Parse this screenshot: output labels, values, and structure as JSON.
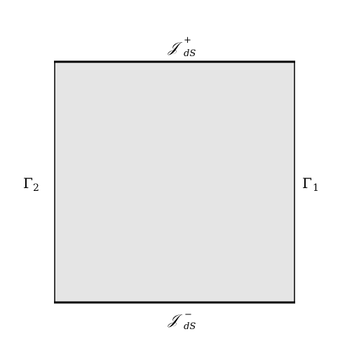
{
  "diagram": {
    "region_fill": "#e5e5e5",
    "stroke_color": "#000000",
    "top": {
      "symbol": "𝒥",
      "subscript": "dS",
      "superscript": "+"
    },
    "bottom": {
      "symbol": "𝒥",
      "subscript": "dS",
      "superscript": "−"
    },
    "right": {
      "symbol": "Γ",
      "subscript": "1"
    },
    "left": {
      "symbol": "Γ",
      "subscript": "2"
    }
  }
}
